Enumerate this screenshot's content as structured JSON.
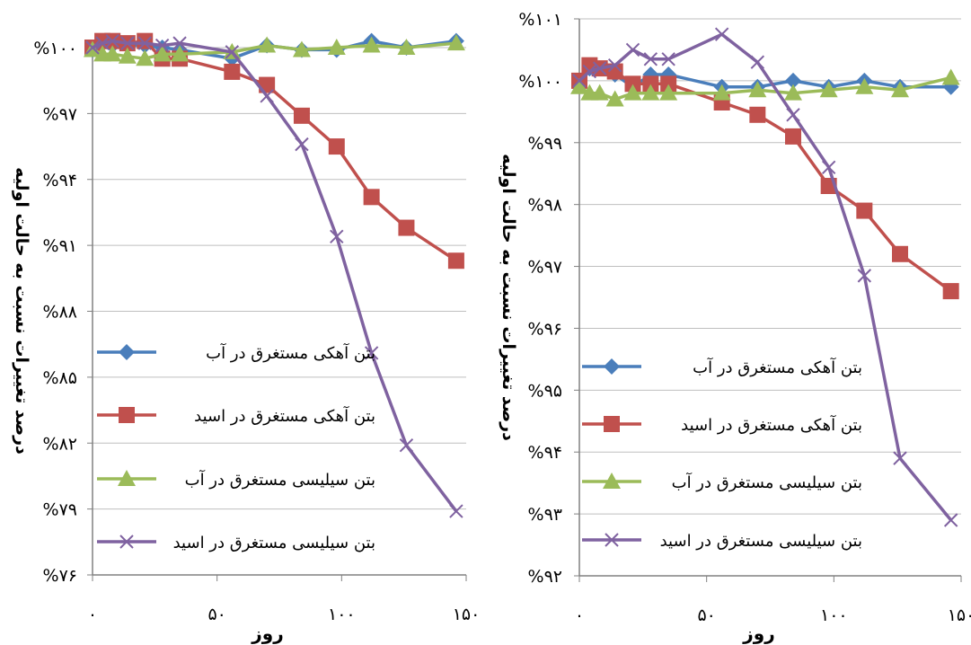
{
  "colors": {
    "lime_water": "#4a7ebb",
    "lime_acid": "#c0504d",
    "silica_water": "#9bbb59",
    "silica_acid": "#7f62a0",
    "axis": "#808080"
  },
  "chart_data": [
    {
      "type": "line",
      "ylabel": "درصد تغییرات نسبت به حالت اولیه",
      "xlabel": "روز",
      "ylim": [
        76,
        100
      ],
      "yticks": [
        {
          "value": 100,
          "label": "%۱۰۰"
        },
        {
          "value": 97,
          "label": "%۹۷"
        },
        {
          "value": 94,
          "label": "%۹۴"
        },
        {
          "value": 91,
          "label": "%۹۱"
        },
        {
          "value": 88,
          "label": "%۸۸"
        },
        {
          "value": 85,
          "label": "%۸۵"
        },
        {
          "value": 82,
          "label": "%۸۲"
        },
        {
          "value": 79,
          "label": "%۷۹"
        },
        {
          "value": 76,
          "label": "%۷۶"
        }
      ],
      "xlim": [
        0,
        150
      ],
      "xticks": [
        {
          "value": 0,
          "label": "۰"
        },
        {
          "value": 50,
          "label": "۵۰"
        },
        {
          "value": 100,
          "label": "۱۰۰"
        },
        {
          "value": 150,
          "label": "۱۵۰"
        }
      ],
      "series": [
        {
          "name": "بتن آهکی مستغرق در آب",
          "color_key": "lime_water",
          "marker": "diamond",
          "x": [
            0,
            4,
            8,
            14,
            21,
            28,
            35,
            56,
            70,
            84,
            98,
            112,
            126,
            146
          ],
          "y": [
            99.9,
            100.2,
            100.1,
            100.1,
            100.1,
            100.0,
            99.9,
            99.5,
            100.1,
            99.9,
            99.9,
            100.3,
            100.0,
            100.3
          ]
        },
        {
          "name": "بتن آهکی مستغرق در اسید",
          "color_key": "lime_acid",
          "marker": "square",
          "x": [
            0,
            4,
            8,
            14,
            21,
            28,
            35,
            56,
            70,
            84,
            98,
            112,
            126,
            146
          ],
          "y": [
            100.0,
            100.3,
            100.3,
            100.2,
            100.3,
            99.5,
            99.5,
            98.9,
            98.3,
            96.9,
            95.5,
            93.2,
            91.8,
            90.3
          ]
        },
        {
          "name": "بتن سیلیسی مستغرق در آب",
          "color_key": "silica_water",
          "marker": "triangle",
          "x": [
            0,
            4,
            8,
            14,
            21,
            28,
            35,
            56,
            70,
            84,
            98,
            112,
            126,
            146
          ],
          "y": [
            99.9,
            99.7,
            99.7,
            99.6,
            99.5,
            99.7,
            99.7,
            99.8,
            100.1,
            99.9,
            100.0,
            100.1,
            100.0,
            100.2
          ]
        },
        {
          "name": "بتن سیلیسی مستغرق در اسید",
          "color_key": "silica_acid",
          "marker": "x",
          "x": [
            0,
            4,
            8,
            14,
            21,
            28,
            35,
            56,
            70,
            84,
            98,
            112,
            126,
            146
          ],
          "y": [
            100.0,
            100.2,
            100.3,
            100.2,
            100.2,
            100.1,
            100.2,
            99.8,
            97.8,
            95.6,
            91.4,
            86.1,
            81.9,
            78.9
          ]
        }
      ]
    },
    {
      "type": "line",
      "ylabel": "درصد تغییرات نسبت به حالت اولیه",
      "xlabel": "روز",
      "ylim": [
        92,
        101
      ],
      "yticks": [
        {
          "value": 101,
          "label": "%۱۰۱"
        },
        {
          "value": 100,
          "label": "%۱۰۰"
        },
        {
          "value": 99,
          "label": "%۹۹"
        },
        {
          "value": 98,
          "label": "%۹۸"
        },
        {
          "value": 97,
          "label": "%۹۷"
        },
        {
          "value": 96,
          "label": "%۹۶"
        },
        {
          "value": 95,
          "label": "%۹۵"
        },
        {
          "value": 94,
          "label": "%۹۴"
        },
        {
          "value": 93,
          "label": "%۹۳"
        },
        {
          "value": 92,
          "label": "%۹۲"
        }
      ],
      "xlim": [
        0,
        150
      ],
      "xticks": [
        {
          "value": 0,
          "label": "۰"
        },
        {
          "value": 50,
          "label": "۵۰"
        },
        {
          "value": 100,
          "label": "۱۰۰"
        },
        {
          "value": 150,
          "label": "۱۵۰"
        }
      ],
      "series": [
        {
          "name": "بتن آهکی مستغرق در آب",
          "color_key": "lime_water",
          "marker": "diamond",
          "x": [
            0,
            4,
            8,
            14,
            21,
            28,
            35,
            56,
            70,
            84,
            98,
            112,
            126,
            146
          ],
          "y": [
            100.0,
            100.2,
            100.2,
            100.1,
            99.9,
            100.1,
            100.1,
            99.9,
            99.9,
            100.0,
            99.9,
            100.0,
            99.9,
            99.9
          ]
        },
        {
          "name": "بتن آهکی مستغرق در اسید",
          "color_key": "lime_acid",
          "marker": "square",
          "x": [
            0,
            4,
            8,
            14,
            21,
            28,
            35,
            56,
            70,
            84,
            98,
            112,
            126,
            146
          ],
          "y": [
            100.0,
            100.25,
            100.2,
            100.15,
            99.95,
            99.95,
            99.95,
            99.65,
            99.45,
            99.1,
            98.3,
            97.9,
            97.2,
            96.6
          ]
        },
        {
          "name": "بتن سیلیسی مستغرق در آب",
          "color_key": "silica_water",
          "marker": "triangle",
          "x": [
            0,
            4,
            8,
            14,
            21,
            28,
            35,
            56,
            70,
            84,
            98,
            112,
            126,
            146
          ],
          "y": [
            99.9,
            99.8,
            99.8,
            99.7,
            99.8,
            99.8,
            99.8,
            99.8,
            99.85,
            99.8,
            99.85,
            99.9,
            99.85,
            100.05
          ]
        },
        {
          "name": "بتن سیلیسی مستغرق در اسید",
          "color_key": "silica_acid",
          "marker": "x",
          "x": [
            0,
            4,
            8,
            14,
            21,
            28,
            35,
            56,
            70,
            84,
            98,
            112,
            126,
            146
          ],
          "y": [
            100.0,
            100.15,
            100.2,
            100.25,
            100.5,
            100.35,
            100.35,
            100.75,
            100.3,
            99.45,
            98.6,
            96.85,
            93.9,
            92.9
          ]
        }
      ]
    }
  ]
}
